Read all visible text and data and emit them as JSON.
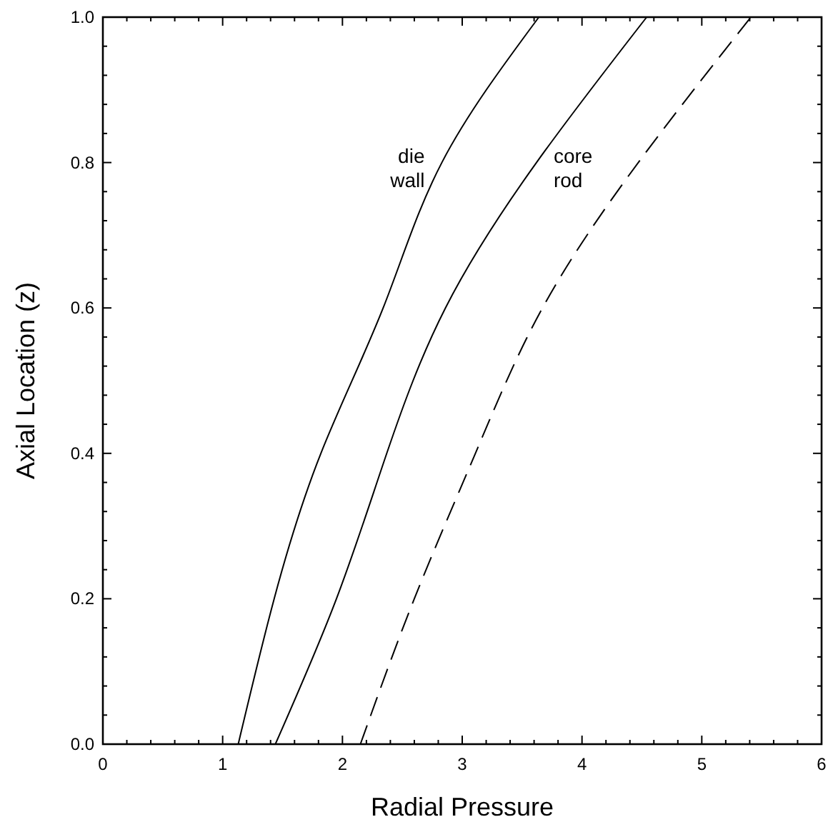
{
  "chart_data": {
    "type": "line",
    "xlabel": "Radial Pressure",
    "ylabel": "Axial Location (z)",
    "xlim": [
      0,
      6
    ],
    "ylim": [
      0,
      1
    ],
    "xticks": [
      0,
      {
        "value": 0.2,
        "label": null
      },
      {
        "value": 0.4,
        "label": null
      },
      {
        "value": 0.6,
        "label": null
      },
      {
        "value": 0.8,
        "label": null
      },
      1,
      {
        "value": 1.2,
        "label": null
      },
      {
        "value": 1.4,
        "label": null
      },
      {
        "value": 1.6,
        "label": null
      },
      {
        "value": 1.8,
        "label": null
      },
      2,
      {
        "value": 2.2,
        "label": null
      },
      {
        "value": 2.4,
        "label": null
      },
      {
        "value": 2.6,
        "label": null
      },
      {
        "value": 2.8,
        "label": null
      },
      3,
      {
        "value": 3.2,
        "label": null
      },
      {
        "value": 3.4,
        "label": null
      },
      {
        "value": 3.6,
        "label": null
      },
      {
        "value": 3.8,
        "label": null
      },
      4,
      {
        "value": 4.2,
        "label": null
      },
      {
        "value": 4.4,
        "label": null
      },
      {
        "value": 4.6,
        "label": null
      },
      {
        "value": 4.8,
        "label": null
      },
      5,
      {
        "value": 5.2,
        "label": null
      },
      {
        "value": 5.4,
        "label": null
      },
      {
        "value": 5.6,
        "label": null
      },
      {
        "value": 5.8,
        "label": null
      },
      6
    ],
    "yticks": [
      {
        "value": 0,
        "label": "0.0"
      },
      {
        "value": 0.04,
        "label": null
      },
      {
        "value": 0.08,
        "label": null
      },
      {
        "value": 0.12,
        "label": null
      },
      {
        "value": 0.16,
        "label": null
      },
      0.2,
      {
        "value": 0.24,
        "label": null
      },
      {
        "value": 0.28,
        "label": null
      },
      {
        "value": 0.32,
        "label": null
      },
      {
        "value": 0.36,
        "label": null
      },
      0.4,
      {
        "value": 0.44,
        "label": null
      },
      {
        "value": 0.48,
        "label": null
      },
      {
        "value": 0.52,
        "label": null
      },
      {
        "value": 0.56,
        "label": null
      },
      0.6,
      {
        "value": 0.64,
        "label": null
      },
      {
        "value": 0.68,
        "label": null
      },
      {
        "value": 0.72,
        "label": null
      },
      {
        "value": 0.76,
        "label": null
      },
      0.8,
      {
        "value": 0.84,
        "label": null
      },
      {
        "value": 0.88,
        "label": null
      },
      {
        "value": 0.92,
        "label": null
      },
      {
        "value": 0.96,
        "label": null
      },
      {
        "value": 1,
        "label": "1.0"
      }
    ],
    "grid": false,
    "series": [
      {
        "color": "#000000",
        "line_style": "solid",
        "x": [
          1.13,
          1.43,
          1.82,
          2.34,
          2.83,
          3.64
        ],
        "values": [
          0,
          0.2,
          0.4,
          0.6,
          0.8,
          1
        ]
      },
      {
        "color": "#000000",
        "line_style": "solid",
        "x": [
          1.44,
          1.95,
          2.37,
          2.86,
          3.62,
          4.54
        ],
        "values": [
          0,
          0.2,
          0.4,
          0.6,
          0.8,
          1
        ]
      },
      {
        "color": "#000000",
        "line_style": "dashed",
        "x": [
          2.15,
          2.6,
          3.11,
          3.67,
          4.47,
          5.41
        ],
        "values": [
          0,
          0.2,
          0.4,
          0.6,
          0.8,
          1
        ]
      }
    ],
    "annotations": [
      "die wall",
      "core rod"
    ]
  }
}
